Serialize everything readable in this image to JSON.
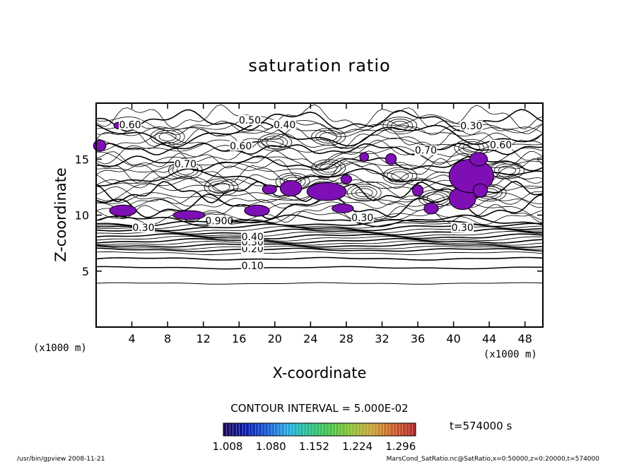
{
  "chart_data": {
    "type": "contour",
    "title": "saturation ratio",
    "xlabel": "X-coordinate",
    "ylabel": "Z-coordinate",
    "x_unit": "(x1000 m)",
    "z_unit": "(x1000 m)",
    "xlim": [
      0,
      50
    ],
    "ylim": [
      0,
      20
    ],
    "x_ticks": [
      4,
      8,
      12,
      16,
      20,
      24,
      28,
      32,
      36,
      40,
      44,
      48
    ],
    "y_ticks": [
      5,
      10,
      15
    ],
    "contour_labels": [
      {
        "text": "0.10",
        "x": 17.5,
        "z": 5.3
      },
      {
        "text": "0.20",
        "x": 17.5,
        "z": 6.8
      },
      {
        "text": "0.30",
        "x": 17.5,
        "z": 7.4
      },
      {
        "text": "0.40",
        "x": 17.5,
        "z": 7.9
      },
      {
        "text": "0.30",
        "x": 5.3,
        "z": 8.7
      },
      {
        "text": "0.900",
        "x": 13.8,
        "z": 9.3
      },
      {
        "text": "0.30",
        "x": 29.8,
        "z": 9.6
      },
      {
        "text": "0.30",
        "x": 41.0,
        "z": 8.7
      },
      {
        "text": "0.60",
        "x": 16.2,
        "z": 16.0
      },
      {
        "text": "0.50",
        "x": 17.2,
        "z": 18.3
      },
      {
        "text": "0.40",
        "x": 21.1,
        "z": 17.9
      },
      {
        "text": "0.70",
        "x": 10.0,
        "z": 14.4
      },
      {
        "text": "0.70",
        "x": 36.9,
        "z": 15.6
      },
      {
        "text": "0.30",
        "x": 42.0,
        "z": 17.8
      },
      {
        "text": "0.60",
        "x": 45.3,
        "z": 16.1
      },
      {
        "text": "0.60",
        "x": 3.8,
        "z": 17.9
      }
    ],
    "contour_interval_text": "CONTOUR INTERVAL = 5.000E-02",
    "colorbar": {
      "tick_labels": [
        "1.008",
        "1.080",
        "1.152",
        "1.224",
        "1.296"
      ],
      "colors": [
        "#1a0a5a",
        "#0b1ba8",
        "#1a5bd6",
        "#25a9e0",
        "#2bbf8a",
        "#43c046",
        "#8fc03a",
        "#c8a235",
        "#c8602c",
        "#b32b2a"
      ]
    },
    "fill_color": "#7d0fb5",
    "time_label": "t=574000 s"
  },
  "footer": {
    "left": "/usr/bin/gpview   2008-11-21",
    "right": "MarsCond_SatRatio.nc@SatRatio,x=0:50000,z=0:20000,t=574000"
  }
}
